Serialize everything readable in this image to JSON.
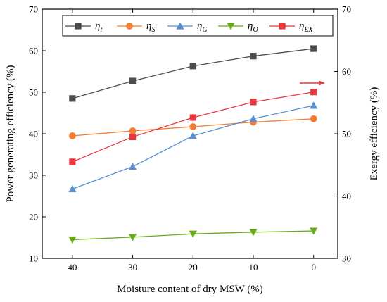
{
  "chart_data": {
    "type": "line",
    "title": "",
    "xlabel": "Moisture content of dry MSW (%)",
    "ylabel": "Power generating efficiency (%)",
    "ylabel_right": "Exergy efficiency (%)",
    "categories": [
      "40",
      "30",
      "20",
      "10",
      "0"
    ],
    "xlim": [
      45,
      -4
    ],
    "ylim": [
      10,
      70
    ],
    "ylim_right": [
      30,
      70
    ],
    "x_ticks": [
      "40",
      "30",
      "20",
      "10",
      "0"
    ],
    "y_ticks": [
      "10",
      "20",
      "30",
      "40",
      "50",
      "60",
      "70"
    ],
    "y_ticks_right": [
      "30",
      "40",
      "50",
      "60",
      "70"
    ],
    "grid": false,
    "legend_position": "top",
    "series": [
      {
        "name": "η",
        "sub": "t",
        "axis": "left",
        "color": "#4d4d4d",
        "marker": "square",
        "x": [
          40,
          30,
          20,
          10,
          0
        ],
        "values": [
          48.5,
          52.7,
          56.3,
          58.7,
          60.5
        ]
      },
      {
        "name": "η",
        "sub": "S",
        "axis": "left",
        "color": "#f47c30",
        "marker": "circle",
        "x": [
          40,
          30,
          20,
          10,
          0
        ],
        "values": [
          39.5,
          40.7,
          41.7,
          42.8,
          43.6
        ]
      },
      {
        "name": "η",
        "sub": "G",
        "axis": "left",
        "color": "#5b8fd0",
        "marker": "triangle-up",
        "x": [
          40,
          30,
          20,
          10,
          0
        ],
        "values": [
          26.7,
          32.1,
          39.5,
          43.6,
          46.8
        ]
      },
      {
        "name": "η",
        "sub": "O",
        "axis": "left",
        "color": "#6aaa1a",
        "marker": "triangle-down",
        "x": [
          40,
          30,
          20,
          10,
          0
        ],
        "values": [
          14.5,
          15.1,
          15.9,
          16.3,
          16.6
        ]
      },
      {
        "name": "η",
        "sub": "EX",
        "axis": "right",
        "color": "#e8383d",
        "marker": "square",
        "x": [
          40,
          30,
          20,
          10,
          0
        ],
        "values": [
          45.5,
          49.5,
          52.6,
          55.1,
          56.7
        ]
      }
    ],
    "annotations": [
      {
        "type": "arrow",
        "direction": "right",
        "color": "#e8383d",
        "indicates": "η_EX uses right axis"
      }
    ]
  }
}
